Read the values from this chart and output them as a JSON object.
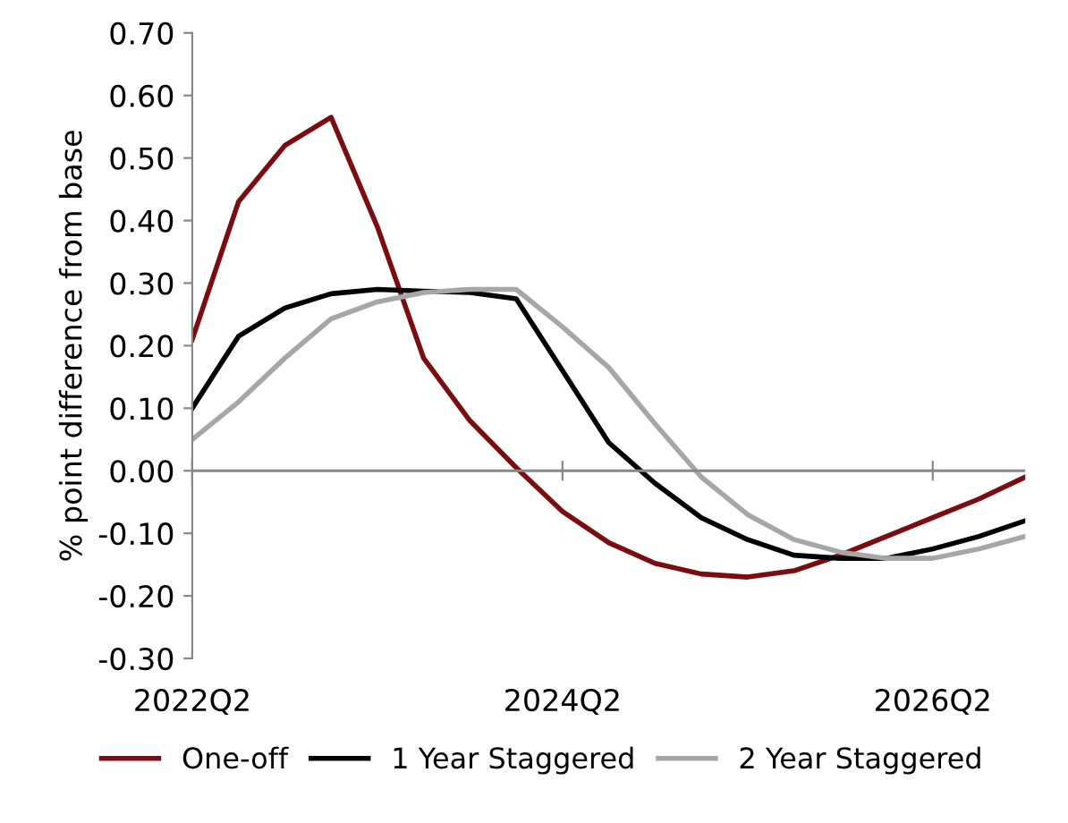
{
  "chart_data": {
    "type": "line",
    "ylabel": "% point difference from base",
    "categories": [
      "2022Q2",
      null,
      null,
      null,
      null,
      null,
      null,
      null,
      "2024Q2",
      null,
      null,
      null,
      null,
      null,
      null,
      null,
      "2026Q2",
      null,
      null
    ],
    "series": [
      {
        "name": "One-off",
        "color": "#7b0c10",
        "values": [
          0.21,
          0.43,
          0.52,
          0.565,
          0.39,
          0.18,
          0.08,
          0.005,
          -0.065,
          -0.115,
          -0.148,
          -0.165,
          -0.17,
          -0.16,
          -0.135,
          -0.105,
          -0.075,
          -0.045,
          -0.01
        ]
      },
      {
        "name": "1 Year Staggered",
        "color": "#000000",
        "values": [
          0.1,
          0.215,
          0.26,
          0.283,
          0.29,
          0.287,
          0.285,
          0.275,
          0.16,
          0.045,
          -0.02,
          -0.075,
          -0.11,
          -0.135,
          -0.14,
          -0.14,
          -0.125,
          -0.105,
          -0.08
        ]
      },
      {
        "name": "2 Year Staggered",
        "color": "#a6a6a6",
        "values": [
          0.05,
          0.11,
          0.18,
          0.243,
          0.27,
          0.285,
          0.29,
          0.29,
          0.23,
          0.165,
          0.075,
          -0.01,
          -0.07,
          -0.11,
          -0.13,
          -0.14,
          -0.14,
          -0.125,
          -0.105
        ]
      }
    ],
    "ylim": [
      -0.3,
      0.7
    ],
    "yticks": [
      {
        "value": -0.3,
        "label": "-0.30"
      },
      {
        "value": -0.2,
        "label": "-0.20"
      },
      {
        "value": -0.1,
        "label": "-0.10"
      },
      {
        "value": 0,
        "label": "0.00"
      },
      {
        "value": 0.1,
        "label": "0.10"
      },
      {
        "value": 0.2,
        "label": "0.20"
      },
      {
        "value": 0.3,
        "label": "0.30"
      },
      {
        "value": 0.4,
        "label": "0.40"
      },
      {
        "value": 0.5,
        "label": "0.50"
      },
      {
        "value": 0.6,
        "label": "0.60"
      },
      {
        "value": 0.7,
        "label": "0.70"
      }
    ],
    "ref_lines": [
      {
        "axis": "y",
        "value": 0,
        "color": "#888888"
      }
    ],
    "legend": "bottom",
    "line_style": "solid"
  }
}
